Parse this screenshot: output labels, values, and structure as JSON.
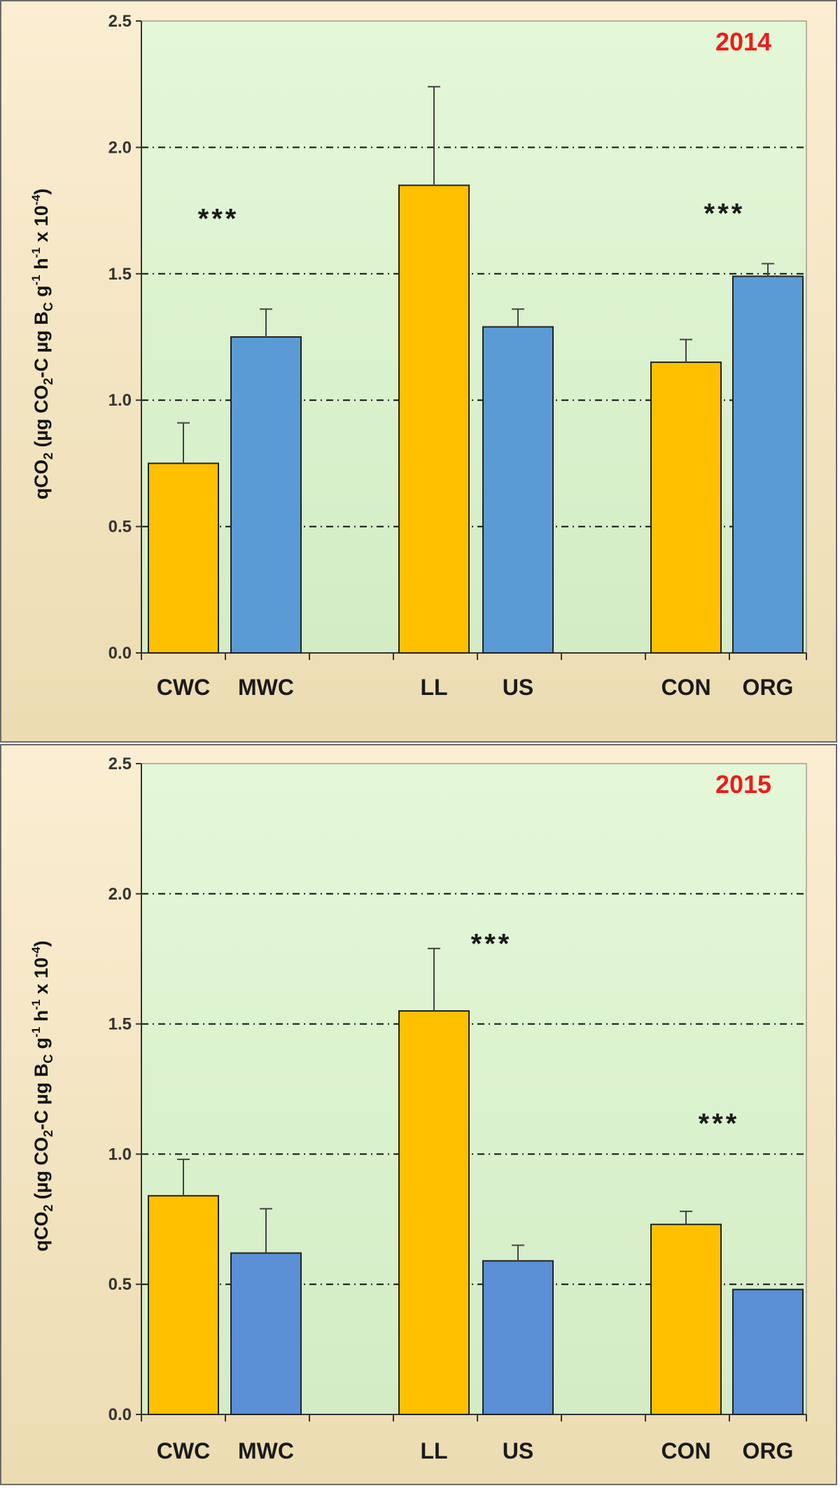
{
  "chart_data": [
    {
      "type": "bar",
      "title": "2014",
      "ylabel": "qCO2 (µg CO2-C µg BC g-1 h-1 x 10-4)",
      "ylabel_parts": {
        "q": "qCO",
        "sub1": "2",
        "mid1": " (µg CO",
        "sub2": "2",
        "mid2": "-C  µg B",
        "sub3": "C",
        "mid3": " g",
        "sup1": "-1",
        "mid4": " h",
        "sup2": "-1",
        "mid5": " x 10",
        "sup3": "-4",
        "end": ")"
      },
      "ylim": [
        0,
        2.5
      ],
      "yticks": [
        "0.0",
        "0.5",
        "1.0",
        "1.5",
        "2.0",
        "2.5"
      ],
      "categories": [
        "CWC",
        "MWC",
        "LL",
        "US",
        "CON",
        "ORG"
      ],
      "values": [
        0.75,
        1.25,
        1.85,
        1.29,
        1.15,
        1.49
      ],
      "errors": [
        0.16,
        0.11,
        0.39,
        0.07,
        0.09,
        0.05
      ],
      "colors": [
        "#ffc000",
        "#5b9bd5",
        "#ffc000",
        "#5b9bd5",
        "#ffc000",
        "#5b9bd5"
      ],
      "significance": [
        {
          "label": "***",
          "group": "CWC-MWC",
          "y": 1.72
        },
        {
          "label": "***",
          "group": "CON-ORG",
          "y": 1.74
        }
      ]
    },
    {
      "type": "bar",
      "title": "2015",
      "ylabel": "qCO2 (µg CO2-C µg BC g-1 h-1 x 10-4)",
      "ylabel_parts": {
        "q": "qCO",
        "sub1": "2",
        "mid1": " (µg CO",
        "sub2": "2",
        "mid2": "-C  µg B",
        "sub3": "C",
        "mid3": " g",
        "sup1": "-1",
        "mid4": " h",
        "sup2": "-1",
        "mid5": " x 10",
        "sup3": "-4",
        "end": ")"
      },
      "ylim": [
        0,
        2.5
      ],
      "yticks": [
        "0.0",
        "0.5",
        "1.0",
        "1.5",
        "2.0",
        "2.5"
      ],
      "categories": [
        "CWC",
        "MWC",
        "LL",
        "US",
        "CON",
        "ORG"
      ],
      "values": [
        0.84,
        0.62,
        1.55,
        0.59,
        0.73,
        0.48
      ],
      "errors": [
        0.14,
        0.17,
        0.24,
        0.06,
        0.05,
        0.0
      ],
      "colors": [
        "#ffc000",
        "#5b8fd6",
        "#ffc000",
        "#5b8fd6",
        "#ffc000",
        "#5b8fd6"
      ],
      "significance": [
        {
          "label": "***",
          "group": "LL-US",
          "y": 1.81
        },
        {
          "label": "***",
          "group": "CON-ORG",
          "y": 1.12
        }
      ]
    }
  ]
}
